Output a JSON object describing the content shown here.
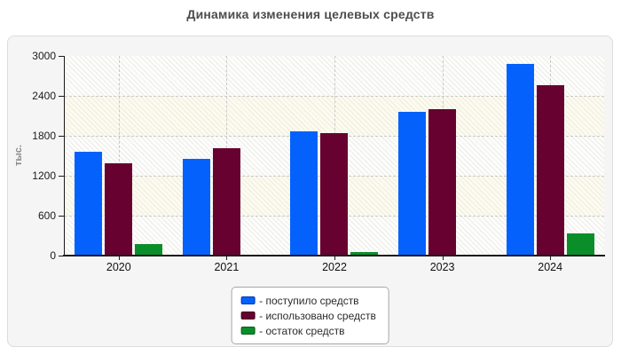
{
  "title": "Динамика изменения целевых средств",
  "chart_data": {
    "type": "bar",
    "title": "Динамика изменения целевых средств",
    "xlabel": "",
    "ylabel": "тыс.",
    "ylim": [
      0,
      3000
    ],
    "yticks": [
      0,
      600,
      1200,
      1800,
      2400,
      3000
    ],
    "grid": "dashed horizontal and vertical",
    "plot_background": "diagonal-hatch, alternating white/cream bands",
    "legend_position": "bottom-center boxed",
    "categories": [
      "2020",
      "2021",
      "2022",
      "2023",
      "2024"
    ],
    "series": [
      {
        "key": "postupilo",
        "name": "- поступило средств",
        "color": "#0561fb",
        "border_color": "#0236b3",
        "values": [
          1560,
          1455,
          1870,
          2160,
          2875
        ]
      },
      {
        "key": "ispolzovano",
        "name": "- использовано средств",
        "color": "#670130",
        "border_color": "#40001d",
        "values": [
          1390,
          1610,
          1835,
          2195,
          2560
        ]
      },
      {
        "key": "ostatok",
        "name": "- остаток средств",
        "color": "#0a8e2a",
        "border_color": "#065c1b",
        "values": [
          170,
          15,
          50,
          15,
          330
        ]
      }
    ]
  },
  "style": {
    "panel_bg": "#f5f5f5",
    "panel_border": "#dcdcdc",
    "axis_color": "#1a1a1a",
    "grid_color": "#c9c9c9",
    "title_color": "#4d4d4d",
    "ylabel_color": "#8a8a8a"
  }
}
